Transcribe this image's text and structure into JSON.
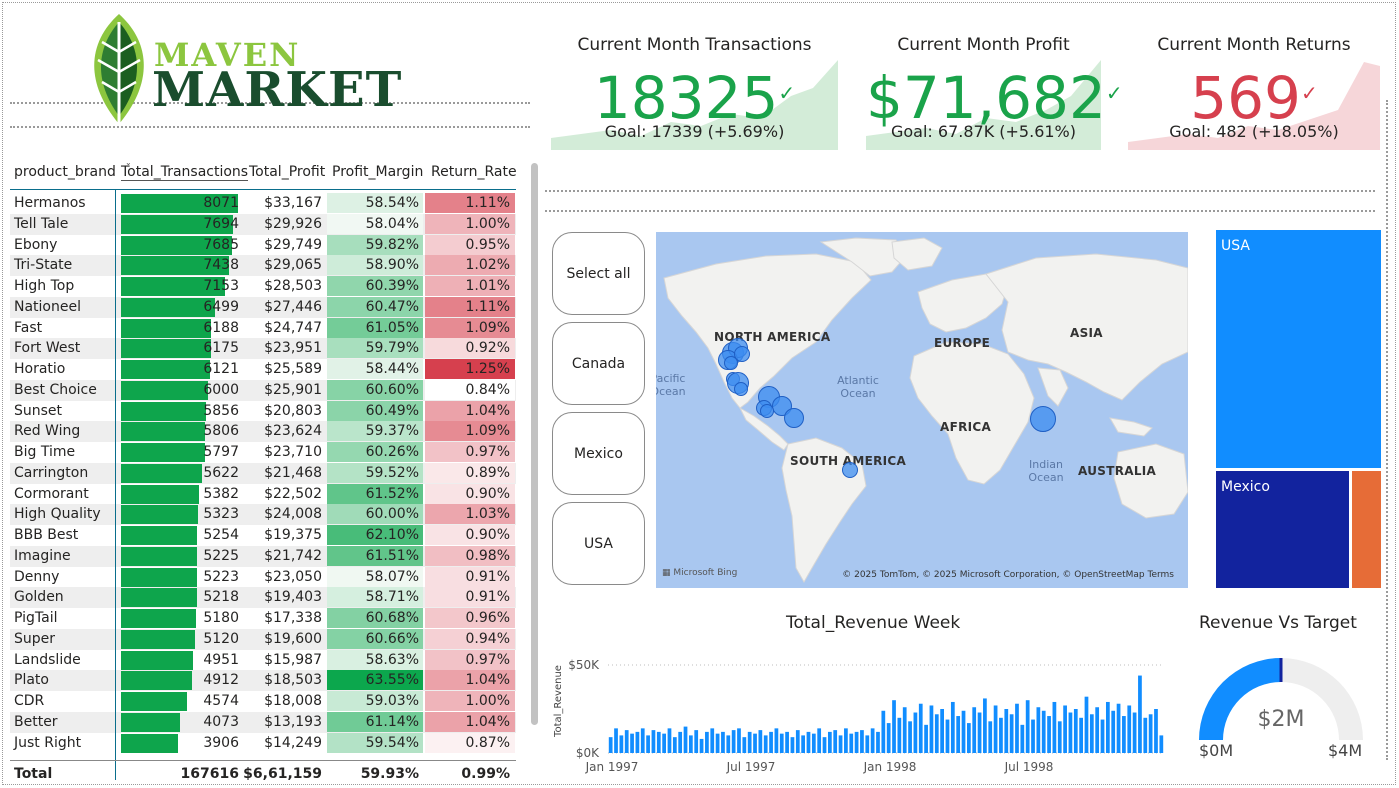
{
  "logo": {
    "line1": "MAVEN",
    "line2": "MARKET"
  },
  "kpis": [
    {
      "title": "Current Month Transactions",
      "value": "18325",
      "check": "✓",
      "goal": "Goal: 17339 (+5.69%)",
      "color": "#1aa34a",
      "bg": "#d3ecd8"
    },
    {
      "title": "Current Month Profit",
      "value": "$71,682",
      "check": "✓",
      "goal": "Goal: 67.87K (+5.61%)",
      "color": "#1aa34a",
      "bg": "#d3ecd8"
    },
    {
      "title": "Current Month Returns",
      "value": "569",
      "check": "✓",
      "goal": "Goal: 482 (+18.05%)",
      "color": "#d6404e",
      "bg": "#f6d6d9"
    }
  ],
  "table": {
    "headers": [
      "product_brand",
      "Total_Transactions",
      "Total_Profit",
      "Profit_Margin",
      "Return_Rate"
    ],
    "max_transactions": 8071,
    "rows": [
      {
        "brand": "Hermanos",
        "tx": 8071,
        "profit": "$33,167",
        "margin": "58.54%",
        "ret": "1.11%"
      },
      {
        "brand": "Tell Tale",
        "tx": 7694,
        "profit": "$29,926",
        "margin": "58.04%",
        "ret": "1.00%"
      },
      {
        "brand": "Ebony",
        "tx": 7685,
        "profit": "$29,749",
        "margin": "59.82%",
        "ret": "0.95%"
      },
      {
        "brand": "Tri-State",
        "tx": 7438,
        "profit": "$29,065",
        "margin": "58.90%",
        "ret": "1.02%"
      },
      {
        "brand": "High Top",
        "tx": 7153,
        "profit": "$28,503",
        "margin": "60.39%",
        "ret": "1.01%"
      },
      {
        "brand": "Nationeel",
        "tx": 6499,
        "profit": "$27,446",
        "margin": "60.47%",
        "ret": "1.11%"
      },
      {
        "brand": "Fast",
        "tx": 6188,
        "profit": "$24,747",
        "margin": "61.05%",
        "ret": "1.09%"
      },
      {
        "brand": "Fort West",
        "tx": 6175,
        "profit": "$23,951",
        "margin": "59.79%",
        "ret": "0.92%"
      },
      {
        "brand": "Horatio",
        "tx": 6121,
        "profit": "$25,589",
        "margin": "58.44%",
        "ret": "1.25%"
      },
      {
        "brand": "Best Choice",
        "tx": 6000,
        "profit": "$25,901",
        "margin": "60.60%",
        "ret": "0.84%"
      },
      {
        "brand": "Sunset",
        "tx": 5856,
        "profit": "$20,803",
        "margin": "60.49%",
        "ret": "1.04%"
      },
      {
        "brand": "Red Wing",
        "tx": 5806,
        "profit": "$23,624",
        "margin": "59.37%",
        "ret": "1.09%"
      },
      {
        "brand": "Big Time",
        "tx": 5797,
        "profit": "$23,710",
        "margin": "60.26%",
        "ret": "0.97%"
      },
      {
        "brand": "Carrington",
        "tx": 5622,
        "profit": "$21,468",
        "margin": "59.52%",
        "ret": "0.89%"
      },
      {
        "brand": "Cormorant",
        "tx": 5382,
        "profit": "$22,502",
        "margin": "61.52%",
        "ret": "0.90%"
      },
      {
        "brand": "High Quality",
        "tx": 5323,
        "profit": "$24,008",
        "margin": "60.00%",
        "ret": "1.03%"
      },
      {
        "brand": "BBB Best",
        "tx": 5254,
        "profit": "$19,375",
        "margin": "62.10%",
        "ret": "0.90%"
      },
      {
        "brand": "Imagine",
        "tx": 5225,
        "profit": "$21,742",
        "margin": "61.51%",
        "ret": "0.98%"
      },
      {
        "brand": "Denny",
        "tx": 5223,
        "profit": "$23,050",
        "margin": "58.07%",
        "ret": "0.91%"
      },
      {
        "brand": "Golden",
        "tx": 5218,
        "profit": "$19,403",
        "margin": "58.71%",
        "ret": "0.91%"
      },
      {
        "brand": "PigTail",
        "tx": 5180,
        "profit": "$17,338",
        "margin": "60.68%",
        "ret": "0.96%"
      },
      {
        "brand": "Super",
        "tx": 5120,
        "profit": "$19,600",
        "margin": "60.66%",
        "ret": "0.94%"
      },
      {
        "brand": "Landslide",
        "tx": 4951,
        "profit": "$15,987",
        "margin": "58.63%",
        "ret": "0.97%"
      },
      {
        "brand": "Plato",
        "tx": 4912,
        "profit": "$18,503",
        "margin": "63.55%",
        "ret": "1.04%"
      },
      {
        "brand": "CDR",
        "tx": 4574,
        "profit": "$18,008",
        "margin": "59.03%",
        "ret": "1.00%"
      },
      {
        "brand": "Better",
        "tx": 4073,
        "profit": "$13,193",
        "margin": "61.14%",
        "ret": "1.04%"
      },
      {
        "brand": "Just Right",
        "tx": 3906,
        "profit": "$14,249",
        "margin": "59.54%",
        "ret": "0.87%"
      }
    ],
    "total": {
      "label": "Total",
      "tx": "167616",
      "profit": "$6,61,159",
      "margin": "59.93%",
      "ret": "0.99%"
    }
  },
  "slicer": {
    "items": [
      "Select all",
      "Canada",
      "Mexico",
      "USA"
    ]
  },
  "map": {
    "continents": [
      "NORTH AMERICA",
      "EUROPE",
      "ASIA",
      "AFRICA",
      "SOUTH AMERICA",
      "AUSTRALIA"
    ],
    "oceans": [
      "Atlantic Ocean",
      "Indian Ocean",
      "Pacific Ocean"
    ],
    "credit": "© 2025 TomTom, © 2025 Microsoft Corporation, © OpenStreetMap  Terms",
    "bing": "Microsoft Bing"
  },
  "treemap": {
    "tiles": [
      {
        "label": "USA",
        "color": "#118dff"
      },
      {
        "label": "Mexico",
        "color": "#12239e"
      },
      {
        "label": "",
        "color": "#e66c37"
      }
    ]
  },
  "revenue_week": {
    "title": "Total_Revenue Week",
    "ylabel": "Total_Revenue",
    "y_ticks": [
      "$50K",
      "$0K"
    ],
    "x_ticks": [
      "Jan 1997",
      "Jul 1997",
      "Jan 1998",
      "Jul 1998"
    ]
  },
  "gauge": {
    "title": "Revenue Vs Target",
    "value_label": "$2M",
    "min_label": "$0M",
    "max_label": "$4M"
  },
  "chart_data": [
    {
      "type": "bar",
      "title": "Total_Revenue Week",
      "xlabel": "",
      "ylabel": "Total_Revenue",
      "ylim": [
        0,
        50000
      ],
      "x_tick_labels": [
        "Jan 1997",
        "Jul 1997",
        "Jan 1998",
        "Jul 1998"
      ],
      "weeks": 104,
      "values": [
        9000,
        14000,
        10000,
        13000,
        11000,
        12000,
        14000,
        10000,
        13000,
        12000,
        11000,
        14000,
        9000,
        12000,
        15000,
        10000,
        13000,
        8000,
        12000,
        14000,
        11000,
        12000,
        10000,
        13000,
        14000,
        9000,
        12000,
        11000,
        13000,
        10000,
        12000,
        14000,
        11000,
        12000,
        9000,
        13000,
        10000,
        12000,
        11000,
        14000,
        9000,
        12000,
        13000,
        10000,
        14000,
        11000,
        12000,
        13000,
        10000,
        14000,
        12000,
        24000,
        17000,
        30000,
        20000,
        26000,
        18000,
        23000,
        28000,
        16000,
        27000,
        22000,
        25000,
        19000,
        29000,
        21000,
        24000,
        17000,
        26000,
        23000,
        31000,
        18000,
        27000,
        20000,
        25000,
        22000,
        28000,
        16000,
        30000,
        19000,
        26000,
        24000,
        21000,
        29000,
        18000,
        27000,
        23000,
        25000,
        20000,
        32000,
        22000,
        26000,
        19000,
        29000,
        24000,
        28000,
        21000,
        27000,
        23000,
        44000,
        20000,
        22000,
        25000,
        10000
      ]
    },
    {
      "type": "gauge",
      "title": "Revenue Vs Target",
      "value": 2000000,
      "target": 2000000,
      "min": 0,
      "max": 4000000
    }
  ]
}
